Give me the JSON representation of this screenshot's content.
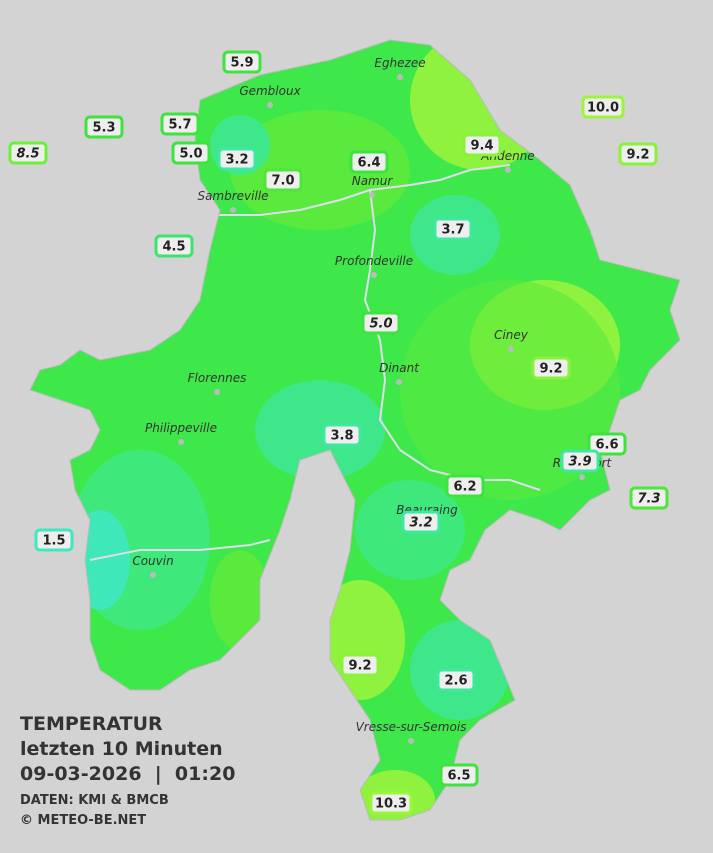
{
  "title": {
    "line1": "TEMPERATUR",
    "line2": "letzten 10 Minuten",
    "line3": "09-03-2026  |  01:20",
    "source": "DATEN: KMI & BMCB",
    "copyright": "© METEO-BE.NET"
  },
  "towns": [
    "Eghezee",
    "Gembloux",
    "Andenne",
    "Namur",
    "Sambreville",
    "Profondeville",
    "Ciney",
    "Dinant",
    "Florennes",
    "Philippeville",
    "Rochefort",
    "Beauraing",
    "Couvin",
    "Vresse-sur-Semois"
  ],
  "stations": [
    {
      "label": "5.9",
      "color": "#3ee33e",
      "italic": false
    },
    {
      "label": "5.3",
      "color": "#3ee33e",
      "italic": false
    },
    {
      "label": "5.7",
      "color": "#3ee33e",
      "italic": false
    },
    {
      "label": "8.5",
      "color": "#6cf03a",
      "italic": true
    },
    {
      "label": "5.0",
      "color": "#3ee33e",
      "italic": false
    },
    {
      "label": "3.2",
      "color": "#3ee8a0",
      "italic": false
    },
    {
      "label": "7.0",
      "color": "#4ee63a",
      "italic": false
    },
    {
      "label": "6.4",
      "color": "#3ee33e",
      "italic": false
    },
    {
      "label": "9.4",
      "color": "#8af23a",
      "italic": false
    },
    {
      "label": "10.0",
      "color": "#9cf53a",
      "italic": false
    },
    {
      "label": "9.2",
      "color": "#8af23a",
      "italic": false
    },
    {
      "label": "4.5",
      "color": "#3ee36a",
      "italic": false
    },
    {
      "label": "3.7",
      "color": "#3ee8a0",
      "italic": false
    },
    {
      "label": "5.0",
      "color": "#3ee33e",
      "italic": true
    },
    {
      "label": "9.2",
      "color": "#8af23a",
      "italic": false
    },
    {
      "label": "3.8",
      "color": "#3ee8a0",
      "italic": false
    },
    {
      "label": "6.6",
      "color": "#3ee33e",
      "italic": false
    },
    {
      "label": "3.9",
      "color": "#3ee8a0",
      "italic": true
    },
    {
      "label": "6.2",
      "color": "#3ee33e",
      "italic": false
    },
    {
      "label": "7.3",
      "color": "#4ee63a",
      "italic": true
    },
    {
      "label": "3.2",
      "color": "#3ee8a0",
      "italic": true
    },
    {
      "label": "1.5",
      "color": "#3ee8c0",
      "italic": false
    },
    {
      "label": "9.2",
      "color": "#8af23a",
      "italic": false
    },
    {
      "label": "2.6",
      "color": "#3ee8a0",
      "italic": false
    },
    {
      "label": "6.5",
      "color": "#3ee33e",
      "italic": false
    },
    {
      "label": "10.3",
      "color": "#9cf53a",
      "italic": false
    }
  ]
}
